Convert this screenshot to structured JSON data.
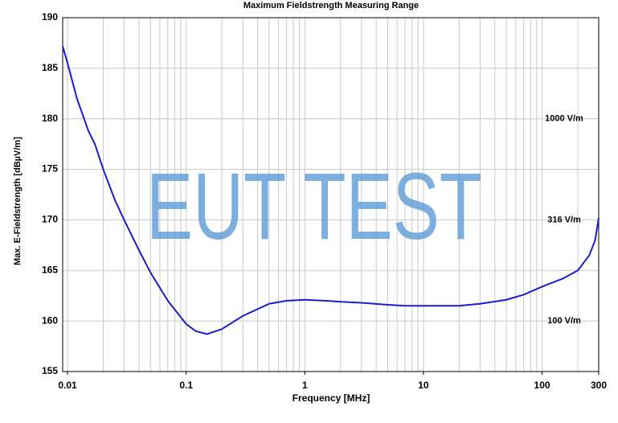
{
  "chart_data": {
    "type": "line",
    "title": "Maximum Fieldstrength Measuring Range",
    "xlabel": "Frequency [MHz]",
    "ylabel": "Max. E-Fieldstrength [dBµV/m]",
    "watermark": "EUT TEST",
    "xscale": "log",
    "grid": true,
    "xlim": [
      0.0091,
      300
    ],
    "xticks": [
      0.01,
      0.1,
      1,
      10,
      100,
      300
    ],
    "ylim": [
      155,
      190
    ],
    "yticks": [
      155,
      160,
      165,
      170,
      175,
      180,
      185,
      190
    ],
    "annotations": [
      {
        "text": "1000 V/m",
        "y": 180
      },
      {
        "text": "316 V/m",
        "y": 170
      },
      {
        "text": "100 V/m",
        "y": 160
      }
    ],
    "color": "#1c1ccc",
    "x": [
      0.0091,
      0.01,
      0.012,
      0.015,
      0.017,
      0.02,
      0.025,
      0.03,
      0.04,
      0.05,
      0.07,
      0.1,
      0.12,
      0.15,
      0.2,
      0.3,
      0.5,
      0.7,
      1,
      1.5,
      2,
      3,
      5,
      7,
      10,
      20,
      30,
      50,
      70,
      100,
      150,
      200,
      250,
      280,
      300
    ],
    "values": [
      187.2,
      185.5,
      182,
      178.8,
      177.5,
      175,
      172,
      170,
      167,
      164.8,
      162,
      159.7,
      159,
      158.7,
      159.2,
      160.5,
      161.7,
      162,
      162.1,
      162,
      161.9,
      161.8,
      161.6,
      161.5,
      161.5,
      161.5,
      161.7,
      162.1,
      162.6,
      163.4,
      164.2,
      165,
      166.5,
      168,
      170.2
    ]
  }
}
